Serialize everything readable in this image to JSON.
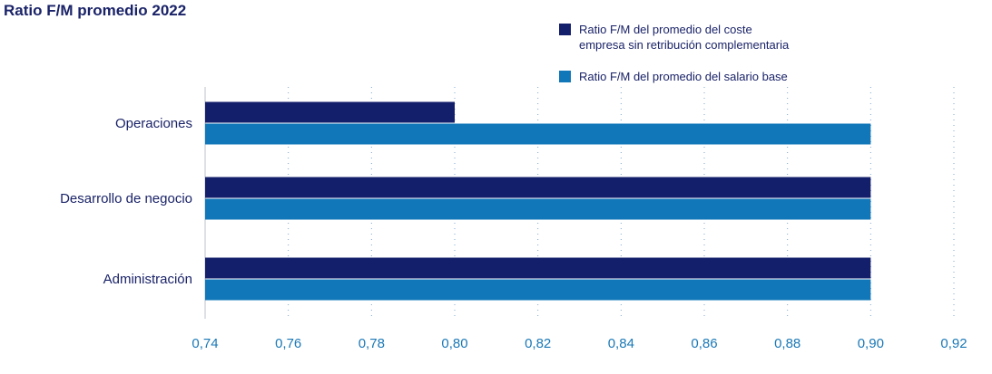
{
  "chart_data": {
    "type": "bar",
    "orientation": "horizontal",
    "title": "Ratio F/M promedio 2022",
    "xlabel": "",
    "ylabel": "",
    "categories": [
      "Operaciones",
      "Desarrollo de negocio",
      "Administración"
    ],
    "series": [
      {
        "name": "Ratio F/M del promedio del coste empresa sin retribución complementaria",
        "name_lines": [
          "Ratio F/M del promedio del coste",
          "empresa sin retribución complementaria"
        ],
        "color": "#141f6b",
        "values": [
          0.8,
          0.9,
          0.9
        ]
      },
      {
        "name": "Ratio F/M del promedio del salario base",
        "name_lines": [
          "Ratio F/M del promedio del salario base"
        ],
        "color": "#1177b8",
        "values": [
          0.9,
          0.9,
          0.9
        ]
      }
    ],
    "xlim": [
      0.74,
      0.92
    ],
    "xticks": [
      0.74,
      0.76,
      0.78,
      0.8,
      0.82,
      0.84,
      0.86,
      0.88,
      0.9,
      0.92
    ],
    "xtick_labels": [
      "0,74",
      "0,76",
      "0,78",
      "0,80",
      "0,82",
      "0,84",
      "0,86",
      "0,88",
      "0,90",
      "0,92"
    ],
    "grid": "vertical-dotted",
    "legend_position": "top-right"
  }
}
